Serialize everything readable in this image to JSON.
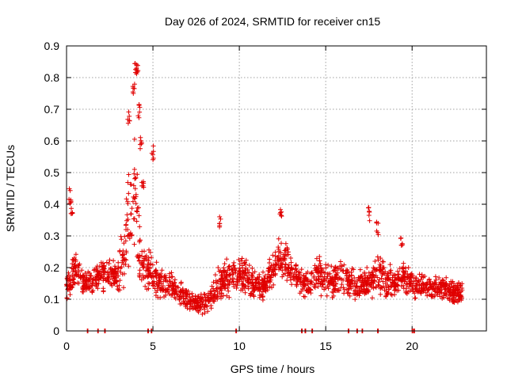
{
  "chart_data": {
    "type": "scatter",
    "title": "Day 026 of 2024, SRMTID for receiver cn15",
    "xlabel": "GPS time / hours",
    "ylabel": "SRMTID / TECUs",
    "xlim": [
      0,
      24.3
    ],
    "ylim": [
      0,
      0.9
    ],
    "xticks": [
      0,
      5,
      10,
      15,
      20
    ],
    "xtick_labels": [
      "0",
      "5",
      "10",
      "15",
      "20"
    ],
    "yticks": [
      0,
      0.1,
      0.2,
      0.3,
      0.4,
      0.5,
      0.6,
      0.7,
      0.8,
      0.9
    ],
    "ytick_labels": [
      "0",
      "0.1",
      "0.2",
      "0.3",
      "0.4",
      "0.5",
      "0.6",
      "0.7",
      "0.8",
      "0.9"
    ],
    "grid": true,
    "marker": "+",
    "color": "#e00000",
    "series": [
      {
        "name": "cn15",
        "profile": {
          "hours": [
            0,
            0.3,
            0.5,
            1,
            1.5,
            2,
            2.5,
            3,
            3.2,
            3.5,
            3.7,
            4,
            4.3,
            4.6,
            5,
            5.5,
            6,
            6.5,
            7,
            7.5,
            8,
            8.5,
            9,
            9.5,
            10,
            10.5,
            11,
            11.5,
            12,
            12.3,
            12.6,
            13,
            13.5,
            14,
            14.5,
            15,
            15.5,
            16,
            16.5,
            17,
            17.5,
            18,
            18.5,
            19,
            19.5,
            20,
            20.5,
            21,
            21.5,
            22,
            22.5,
            22.9
          ],
          "typical_srmtid": [
            0.14,
            0.17,
            0.2,
            0.15,
            0.16,
            0.18,
            0.18,
            0.17,
            0.21,
            0.3,
            0.42,
            0.35,
            0.22,
            0.2,
            0.17,
            0.15,
            0.14,
            0.12,
            0.1,
            0.09,
            0.09,
            0.12,
            0.16,
            0.17,
            0.18,
            0.17,
            0.14,
            0.14,
            0.2,
            0.24,
            0.22,
            0.19,
            0.16,
            0.15,
            0.18,
            0.17,
            0.16,
            0.17,
            0.15,
            0.14,
            0.15,
            0.19,
            0.16,
            0.15,
            0.17,
            0.15,
            0.14,
            0.14,
            0.14,
            0.13,
            0.12,
            0.12
          ],
          "spread": [
            0.06,
            0.07,
            0.07,
            0.06,
            0.06,
            0.07,
            0.08,
            0.08,
            0.2,
            0.22,
            0.28,
            0.28,
            0.12,
            0.1,
            0.08,
            0.07,
            0.06,
            0.05,
            0.05,
            0.04,
            0.04,
            0.06,
            0.07,
            0.07,
            0.07,
            0.07,
            0.06,
            0.06,
            0.09,
            0.1,
            0.09,
            0.08,
            0.06,
            0.06,
            0.08,
            0.08,
            0.07,
            0.08,
            0.06,
            0.06,
            0.07,
            0.09,
            0.07,
            0.06,
            0.07,
            0.06,
            0.06,
            0.05,
            0.05,
            0.05,
            0.05,
            0.05
          ]
        },
        "spikes": [
          {
            "x": 0.2,
            "y": 0.45
          },
          {
            "x": 0.3,
            "y": 0.42
          },
          {
            "x": 3.6,
            "y": 0.7
          },
          {
            "x": 3.9,
            "y": 0.79
          },
          {
            "x": 4.0,
            "y": 0.865
          },
          {
            "x": 4.1,
            "y": 0.86
          },
          {
            "x": 4.2,
            "y": 0.72
          },
          {
            "x": 4.3,
            "y": 0.62
          },
          {
            "x": 4.4,
            "y": 0.48
          },
          {
            "x": 5.0,
            "y": 0.59
          },
          {
            "x": 8.9,
            "y": 0.37
          },
          {
            "x": 12.4,
            "y": 0.39
          },
          {
            "x": 17.5,
            "y": 0.39
          },
          {
            "x": 18.0,
            "y": 0.35
          },
          {
            "x": 19.4,
            "y": 0.3
          }
        ],
        "zero_markers_x": [
          1.2,
          1.8,
          2.2,
          4.7,
          4.9,
          9.8,
          13.6,
          13.8,
          14.2,
          16.3,
          16.8,
          17.1,
          18.0,
          20.0,
          20.1
        ]
      }
    ]
  }
}
